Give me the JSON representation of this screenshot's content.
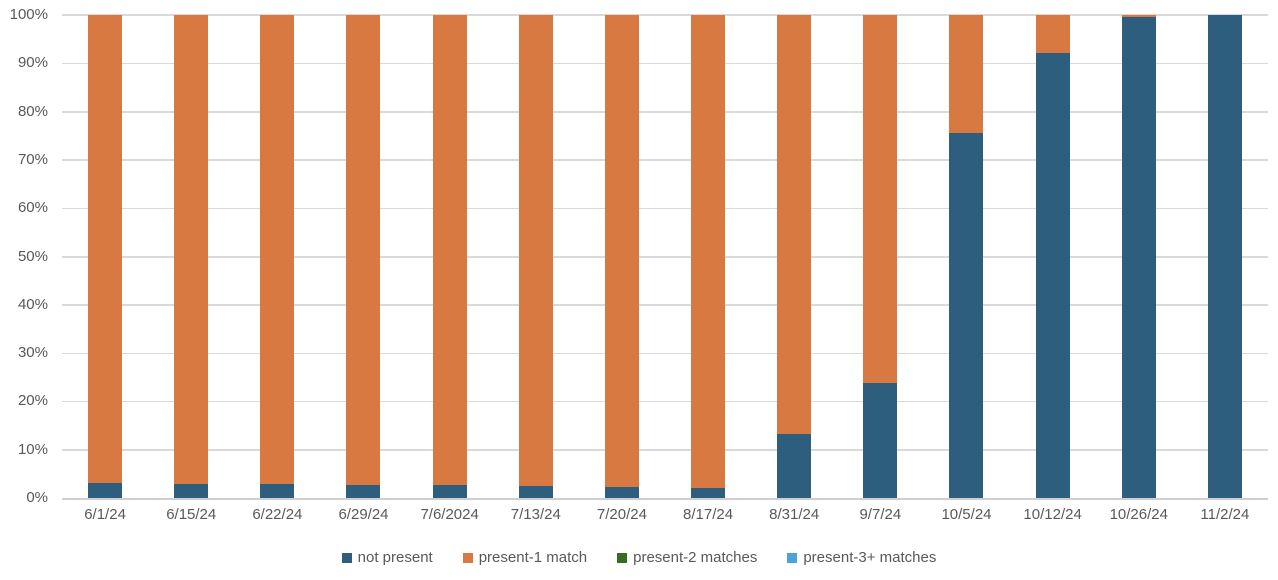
{
  "chart_data": {
    "type": "bar",
    "subtype": "stacked-100-percent",
    "title": "",
    "xlabel": "",
    "ylabel": "",
    "ylim": [
      0,
      100
    ],
    "grid": true,
    "legend_position": "bottom",
    "categories": [
      "6/1/24",
      "6/15/24",
      "6/22/24",
      "6/29/24",
      "7/6/2024",
      "7/13/24",
      "7/20/24",
      "8/17/24",
      "8/31/24",
      "9/7/24",
      "10/5/24",
      "10/12/24",
      "10/26/24",
      "11/2/24"
    ],
    "series": [
      {
        "name": "not present",
        "color": "#2d5e7d",
        "values": [
          3.1,
          2.9,
          2.8,
          2.6,
          2.6,
          2.4,
          2.3,
          2.0,
          13.2,
          23.8,
          75.6,
          92.2,
          99.5,
          100.0
        ]
      },
      {
        "name": "present-1 match",
        "color": "#d77940",
        "values": [
          96.9,
          97.1,
          97.2,
          97.4,
          97.4,
          97.6,
          97.7,
          98.0,
          86.8,
          76.2,
          24.4,
          7.8,
          0.5,
          0.0
        ]
      },
      {
        "name": "present-2 matches",
        "color": "#3a6b24",
        "values": [
          0,
          0,
          0,
          0,
          0,
          0,
          0,
          0,
          0,
          0,
          0,
          0,
          0,
          0
        ]
      },
      {
        "name": "present-3+ matches",
        "color": "#4ba3db",
        "values": [
          0,
          0,
          0,
          0,
          0,
          0,
          0,
          0,
          0,
          0,
          0,
          0,
          0,
          0
        ]
      }
    ],
    "y_axis": {
      "tick_values": [
        0,
        10,
        20,
        30,
        40,
        50,
        60,
        70,
        80,
        90,
        100
      ],
      "tick_labels": [
        "0%",
        "10%",
        "20%",
        "30%",
        "40%",
        "50%",
        "60%",
        "70%",
        "80%",
        "90%",
        "100%"
      ]
    }
  },
  "colors": {
    "background": "#ffffff",
    "gridline": "#d9d9d9",
    "axis_baseline": "#cfcfcf",
    "text": "#595959"
  }
}
